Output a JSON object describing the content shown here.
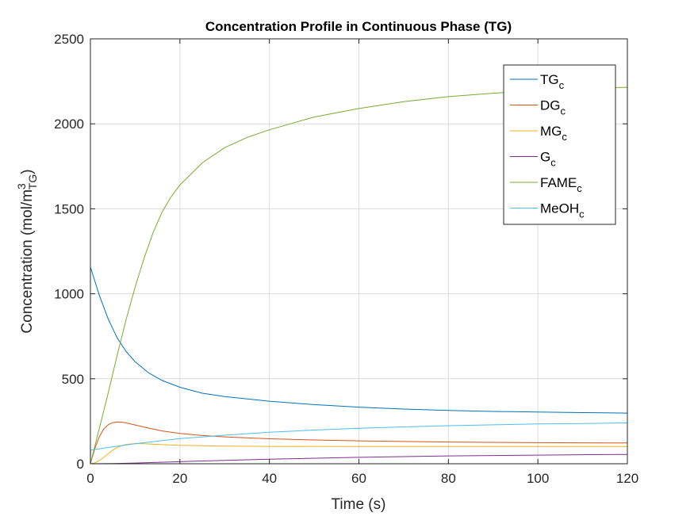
{
  "chart_data": {
    "type": "line",
    "title": "Concentration Profile in Continuous Phase (TG)",
    "xlabel": "Time (s)",
    "ylabel": {
      "main": "Concentration (mol/m",
      "sup": "3",
      "sub": "TG",
      "end": ")"
    },
    "xlim": [
      0,
      120
    ],
    "ylim": [
      0,
      2500
    ],
    "xticks": [
      0,
      20,
      40,
      60,
      80,
      100,
      120
    ],
    "yticks": [
      0,
      500,
      1000,
      1500,
      2000,
      2500
    ],
    "grid": true,
    "legend_position": "top-right",
    "series": [
      {
        "name": "TG",
        "sub": "c",
        "color": "#0072BD",
        "x": [
          0,
          2,
          4,
          6,
          8,
          10,
          13,
          16,
          20,
          25,
          30,
          40,
          50,
          60,
          70,
          80,
          90,
          100,
          110,
          120
        ],
        "y": [
          1157,
          990,
          850,
          740,
          660,
          600,
          535,
          490,
          450,
          415,
          395,
          368,
          348,
          333,
          322,
          314,
          308,
          304,
          301,
          298
        ]
      },
      {
        "name": "DG",
        "sub": "c",
        "color": "#D95319",
        "x": [
          0,
          1,
          2,
          3,
          4,
          5,
          6,
          7,
          8,
          10,
          13,
          16,
          20,
          25,
          30,
          40,
          50,
          60,
          80,
          100,
          120
        ],
        "y": [
          0,
          90,
          160,
          205,
          230,
          242,
          246,
          245,
          240,
          228,
          210,
          193,
          178,
          166,
          158,
          147,
          140,
          135,
          128,
          124,
          122
        ]
      },
      {
        "name": "MG",
        "sub": "c",
        "color": "#EDB120",
        "x": [
          0,
          1,
          2,
          3,
          4,
          5,
          6,
          7,
          8,
          10,
          12,
          15,
          20,
          30,
          40,
          60,
          80,
          100,
          120
        ],
        "y": [
          0,
          5,
          18,
          38,
          60,
          80,
          96,
          107,
          114,
          119,
          118,
          114,
          108,
          104,
          102,
          101,
          101,
          101,
          101
        ]
      },
      {
        "name": "G",
        "sub": "c",
        "color": "#7E2F8E",
        "x": [
          0,
          5,
          10,
          20,
          30,
          40,
          60,
          80,
          100,
          120
        ],
        "y": [
          0,
          1,
          4,
          12,
          20,
          27,
          38,
          46,
          51,
          55
        ]
      },
      {
        "name": "FAME",
        "sub": "c",
        "color": "#77AC30",
        "x": [
          0,
          2,
          4,
          6,
          8,
          10,
          12,
          14,
          16,
          18,
          20,
          25,
          30,
          35,
          40,
          50,
          60,
          70,
          80,
          90,
          100,
          110,
          120
        ],
        "y": [
          0,
          210,
          420,
          640,
          850,
          1040,
          1210,
          1360,
          1480,
          1570,
          1640,
          1770,
          1860,
          1920,
          1965,
          2040,
          2090,
          2130,
          2160,
          2180,
          2195,
          2208,
          2215
        ]
      },
      {
        "name": "MeOH",
        "sub": "c",
        "color": "#4DBEEE",
        "x": [
          0,
          0.05,
          5,
          10,
          20,
          30,
          40,
          50,
          60,
          70,
          80,
          90,
          100,
          110,
          120
        ],
        "y": [
          0,
          80,
          100,
          118,
          148,
          168,
          185,
          198,
          209,
          217,
          224,
          229,
          234,
          237,
          240
        ]
      }
    ]
  }
}
